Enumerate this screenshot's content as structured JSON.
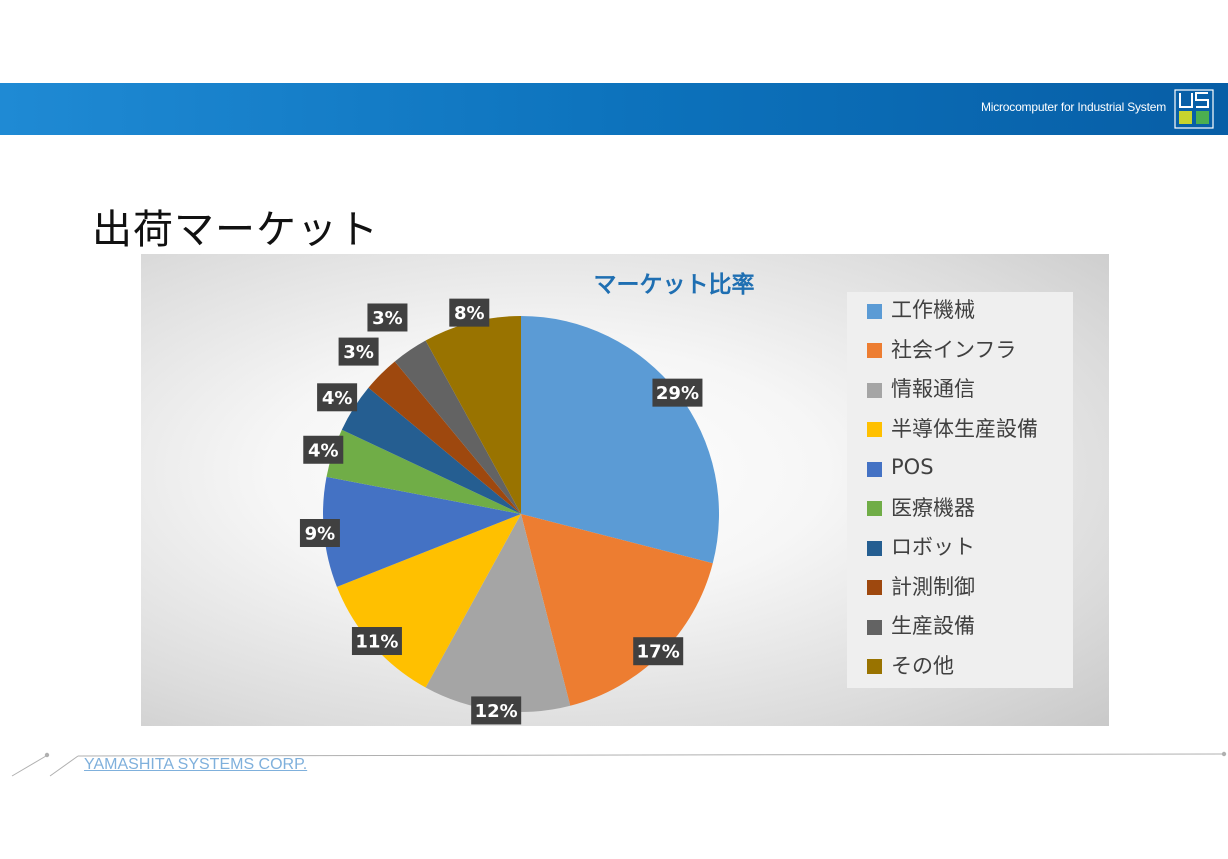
{
  "header": {
    "banner_text": "Microcomputer for Industrial System"
  },
  "slide": {
    "title": "出荷マーケット"
  },
  "footer": {
    "company": "YAMASHITA SYSTEMS CORP."
  },
  "chart_data": {
    "type": "pie",
    "title": "マーケット比率",
    "legend_position": "right",
    "categories": [
      "工作機械",
      "社会インフラ",
      "情報通信",
      "半導体生産設備",
      "POS",
      "医療機器",
      "ロボット",
      "計測制御",
      "生産設備",
      "その他"
    ],
    "values": [
      29,
      17,
      12,
      11,
      9,
      4,
      4,
      3,
      3,
      8
    ],
    "labels": [
      "29%",
      "17%",
      "12%",
      "11%",
      "9%",
      "4%",
      "4%",
      "3%",
      "3%",
      "8%"
    ],
    "colors": [
      "#5b9bd5",
      "#ed7d31",
      "#a5a5a5",
      "#ffc000",
      "#4472c4",
      "#70ad47",
      "#255e91",
      "#9e480e",
      "#636363",
      "#997300"
    ]
  }
}
